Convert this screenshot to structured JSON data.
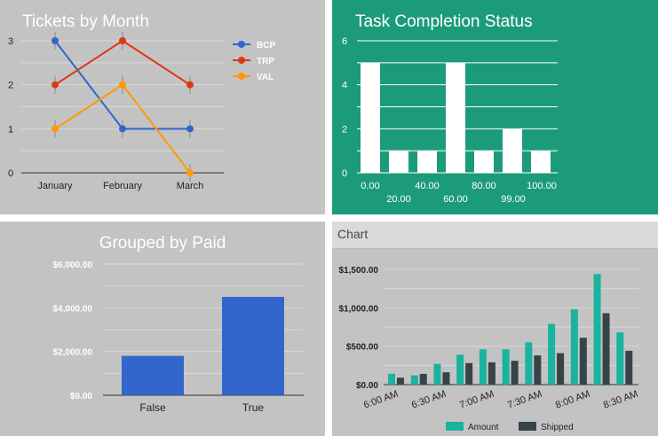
{
  "colors": {
    "panel_gray": "#c3c3c3",
    "panel_green": "#1b9b7a",
    "grid_light": "#d9d9d9",
    "bcp": "#3366cc",
    "trp": "#dc3912",
    "val": "#ff9900",
    "grouped_bar": "#3366cc",
    "amount": "#1ab39f",
    "shipped": "#364449"
  },
  "charts": {
    "tickets": {
      "title": "Tickets by Month",
      "type": "line",
      "categories": [
        "January",
        "February",
        "March"
      ],
      "y_ticks": [
        "0",
        "1",
        "2",
        "3"
      ],
      "ylim": [
        0,
        3
      ],
      "series": [
        {
          "name": "BCP",
          "color": "#3366cc",
          "values": [
            3,
            1,
            1
          ]
        },
        {
          "name": "TRP",
          "color": "#dc3912",
          "values": [
            2,
            3,
            2
          ]
        },
        {
          "name": "VAL",
          "color": "#ff9900",
          "values": [
            1,
            2,
            0
          ]
        }
      ],
      "legend_position": "right",
      "grid": true
    },
    "task": {
      "title": "Task Completion Status",
      "type": "bar",
      "values": [
        5,
        1,
        1,
        5,
        1,
        2,
        1
      ],
      "y_ticks": [
        "0",
        "2",
        "4",
        "6"
      ],
      "ylim": [
        0,
        6
      ],
      "x_ticks_upper": [
        "0.00",
        "40.00",
        "80.00",
        "100.00"
      ],
      "x_ticks_lower": [
        "20.00",
        "60.00",
        "99.00"
      ],
      "grid": true
    },
    "grouped": {
      "title": "Grouped by Paid",
      "type": "bar",
      "categories": [
        "False",
        "True"
      ],
      "values": [
        1800,
        4500
      ],
      "y_ticks": [
        "$0.00",
        "$2,000.00",
        "$4,000.00",
        "$6,000.00"
      ],
      "ylim": [
        0,
        6000
      ],
      "grid": true
    },
    "chart": {
      "title": "Chart",
      "type": "bar",
      "x_ticks": [
        "6:00 AM",
        "6:30 AM",
        "7:00 AM",
        "7:30 AM",
        "8:00 AM",
        "8:30 AM"
      ],
      "y_ticks": [
        "$0.00",
        "$500.00",
        "$1,000.00",
        "$1,500.00"
      ],
      "ylim": [
        0,
        1500
      ],
      "series": [
        {
          "name": "Amount",
          "color": "#1ab39f",
          "values": [
            140,
            120,
            270,
            390,
            460,
            460,
            550,
            790,
            980,
            1440,
            680
          ]
        },
        {
          "name": "Shipped",
          "color": "#364449",
          "values": [
            90,
            140,
            160,
            280,
            290,
            310,
            380,
            410,
            610,
            930,
            440
          ]
        }
      ],
      "legend_position": "bottom",
      "grid": true
    }
  }
}
